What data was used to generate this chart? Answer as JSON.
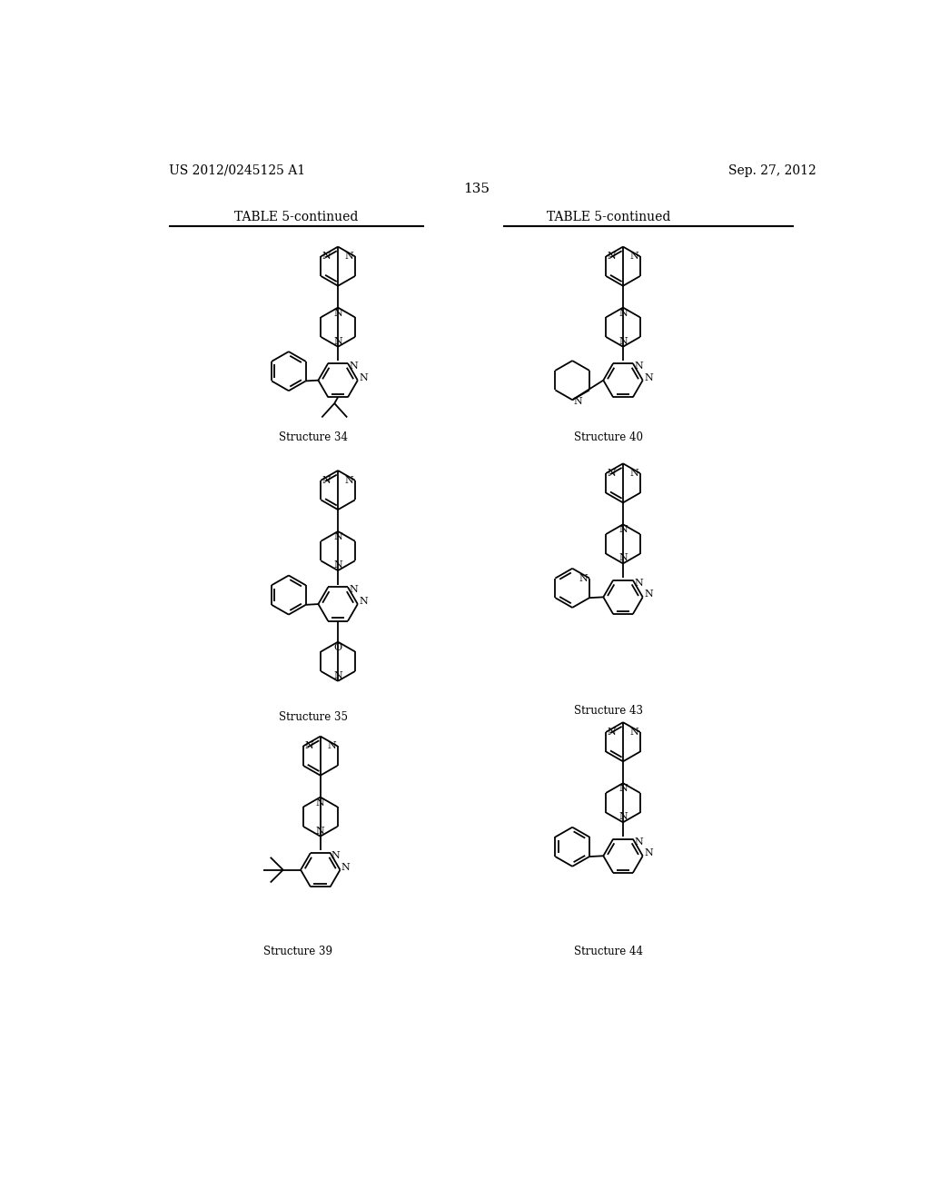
{
  "page_number": "135",
  "patent_number": "US 2012/0245125 A1",
  "patent_date": "Sep. 27, 2012",
  "table_title": "TABLE 5-continued",
  "background_color": "#ffffff",
  "text_color": "#000000",
  "lw": 1.3,
  "structures": [
    {
      "id": "34",
      "label": "Structure 34"
    },
    {
      "id": "40",
      "label": "Structure 40"
    },
    {
      "id": "35",
      "label": "Structure 35"
    },
    {
      "id": "43",
      "label": "Structure 43"
    },
    {
      "id": "39",
      "label": "Structure 39"
    },
    {
      "id": "44",
      "label": "Structure 44"
    }
  ]
}
